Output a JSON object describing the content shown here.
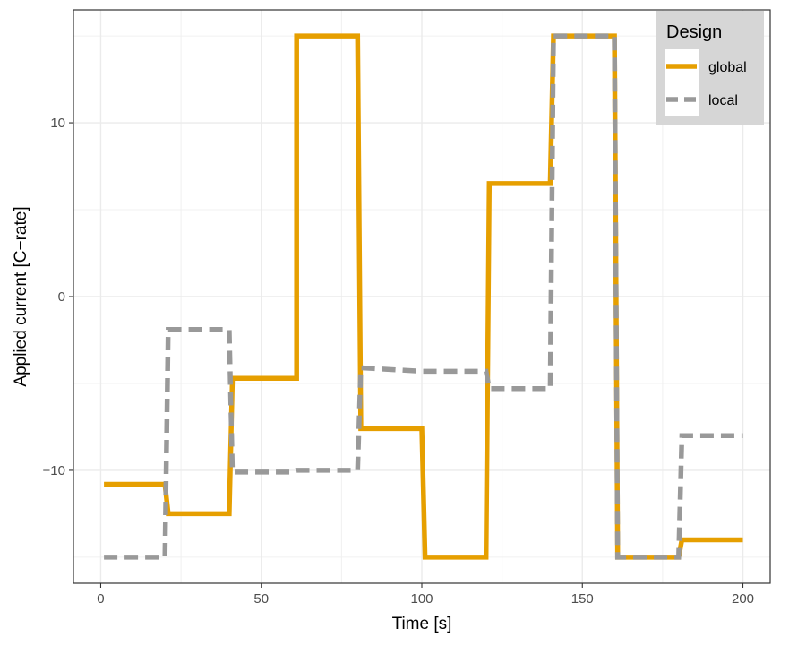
{
  "chart_data": {
    "type": "line",
    "title": "",
    "xlabel": "Time [s]",
    "ylabel": "Applied current [C−rate]",
    "xlim": [
      -8.5,
      208.5
    ],
    "ylim": [
      -16.5,
      16.5
    ],
    "x_ticks": [
      0,
      50,
      100,
      150,
      200
    ],
    "x_tick_labels": [
      "0",
      "50",
      "100",
      "150",
      "200"
    ],
    "y_ticks": [
      -10,
      0,
      10
    ],
    "y_tick_labels": [
      "−10",
      "0",
      "10"
    ],
    "grid": true,
    "legend": {
      "title": "Design",
      "position": "top-right"
    },
    "series": [
      {
        "name": "global",
        "color": "#E69F00",
        "style": "solid",
        "points": [
          [
            1,
            -10.8
          ],
          [
            20,
            -10.8
          ],
          [
            21,
            -12.5
          ],
          [
            40,
            -12.5
          ],
          [
            41,
            -4.7
          ],
          [
            61,
            -4.7
          ],
          [
            61,
            15
          ],
          [
            80,
            15
          ],
          [
            81,
            -7.6
          ],
          [
            100,
            -7.6
          ],
          [
            101,
            -15
          ],
          [
            120,
            -15
          ],
          [
            121,
            6.5
          ],
          [
            140,
            6.5
          ],
          [
            141,
            15
          ],
          [
            160,
            15
          ],
          [
            161,
            -15
          ],
          [
            180,
            -15
          ],
          [
            181,
            -14
          ],
          [
            200,
            -14
          ]
        ]
      },
      {
        "name": "local",
        "color": "#999999",
        "style": "dashed",
        "points": [
          [
            1,
            -15
          ],
          [
            20,
            -15
          ],
          [
            21,
            -1.9
          ],
          [
            40,
            -1.9
          ],
          [
            41,
            -10.1
          ],
          [
            60,
            -10.1
          ],
          [
            61,
            -10
          ],
          [
            80,
            -10
          ],
          [
            81,
            -4.1
          ],
          [
            100,
            -4.3
          ],
          [
            101,
            -4.3
          ],
          [
            120,
            -4.3
          ],
          [
            121,
            -5.3
          ],
          [
            140,
            -5.3
          ],
          [
            141,
            15
          ],
          [
            160,
            15
          ],
          [
            161,
            -15
          ],
          [
            180,
            -15
          ],
          [
            181,
            -8
          ],
          [
            200,
            -8
          ]
        ]
      }
    ]
  }
}
